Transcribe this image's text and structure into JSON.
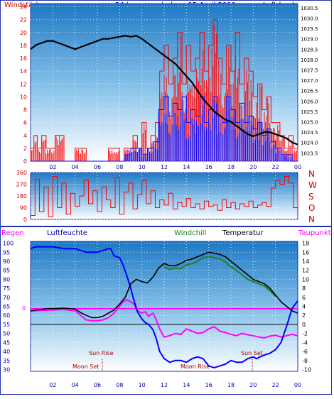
{
  "header": {
    "title": "24 hour graph day : 15 April 2019",
    "left_label": "Windstärke",
    "right_label": "Luftdruck"
  },
  "bottom_header": {
    "regen": "Regen",
    "luftfeuchte": "Luftfeuchte",
    "windchill": "Windchill",
    "temperatur": "Temperatur",
    "taupunkt": "Taupunkt"
  },
  "colors": {
    "background": "#ffffff",
    "frame": "#2233aa",
    "sky_top": "#1d79c4",
    "sky_bottom": "#ffffff",
    "gust": "#ff0000",
    "wind": "#0000ff",
    "pressure": "#000000",
    "direction": "#ff0000",
    "humidity": "#0000ff",
    "temperature": "#000000",
    "windchill": "#208020",
    "dewpoint": "#ff00ff",
    "rain": "#ff00ff",
    "axis_red": "#cc0000",
    "axis_blue": "#0000aa"
  },
  "chart_data": [
    {
      "type": "line",
      "x_unit": "hour",
      "xlim": [
        0,
        24
      ],
      "x_ticks": [
        "02",
        "04",
        "06",
        "08",
        "10",
        "12",
        "14",
        "16",
        "18",
        "20",
        "22",
        "00"
      ],
      "y_left": {
        "label": "Windstärke",
        "ticks": [
          0,
          2,
          4,
          6,
          8,
          10,
          12,
          14,
          16,
          18,
          20,
          22,
          24
        ],
        "ylim": [
          0,
          24.5
        ]
      },
      "y_right": {
        "label": "Luftdruck",
        "ticks": [
          1023.5,
          1024,
          1024.5,
          1025,
          1025.5,
          1026,
          1026.5,
          1027,
          1027.5,
          1028,
          1028.5,
          1029,
          1029.5,
          1030,
          1030.5
        ],
        "ylim": [
          1023.1,
          1030.7
        ]
      },
      "series": [
        {
          "axis": "left",
          "x": [
            0,
            0.3,
            0.6,
            1,
            1.4,
            1.8,
            2.2,
            3,
            4,
            5,
            6,
            7,
            8,
            8.4,
            8.8,
            9.2,
            9.6,
            10,
            10.4,
            10.8,
            11.2,
            11.6,
            12,
            12.4,
            12.8,
            13.2,
            13.6,
            14,
            14.4,
            14.8,
            15.2,
            15.6,
            16,
            16.4,
            16.8,
            17.2,
            17.6,
            18,
            18.4,
            18.8,
            19.2,
            19.6,
            20,
            20.4,
            20.8,
            21.2,
            21.6,
            22,
            22.4,
            22.8,
            23.2,
            23.6,
            24
          ],
          "values": [
            2,
            4,
            2,
            4,
            2,
            2,
            4,
            0,
            2,
            0,
            0,
            2,
            0,
            2,
            2,
            4,
            2,
            6,
            2,
            4,
            6,
            14,
            18,
            12,
            16,
            20,
            12,
            18,
            14,
            16,
            20,
            14,
            18,
            22,
            16,
            12,
            18,
            14,
            20,
            12,
            16,
            14,
            10,
            12,
            8,
            10,
            6,
            6,
            4,
            2,
            4,
            2,
            2
          ]
        },
        {
          "axis": "left",
          "x": [
            0,
            1,
            2,
            3,
            4,
            5,
            6,
            7,
            8,
            8.5,
            9,
            9.5,
            10,
            10.5,
            11,
            11.5,
            12,
            12.4,
            12.8,
            13.2,
            13.6,
            14,
            14.4,
            14.8,
            15.2,
            15.6,
            16,
            16.4,
            16.8,
            17.2,
            17.6,
            18,
            18.4,
            18.8,
            19.2,
            19.6,
            20,
            20.4,
            20.8,
            21.2,
            21.6,
            22,
            22.5,
            23,
            23.5,
            24
          ],
          "values": [
            0,
            0,
            0,
            0,
            0,
            0,
            0,
            0,
            0,
            1,
            2,
            2,
            1,
            2,
            3,
            8,
            10,
            7,
            9,
            8,
            10,
            6,
            8,
            7,
            10,
            6,
            8,
            10,
            7,
            6,
            10,
            8,
            6,
            9,
            6,
            7,
            5,
            6,
            4,
            5,
            3,
            2,
            1,
            1,
            0,
            0
          ]
        },
        {
          "axis": "right",
          "x": [
            0,
            0.5,
            1,
            1.5,
            2,
            2.5,
            3,
            3.5,
            4,
            4.5,
            5,
            5.5,
            6,
            6.5,
            7,
            7.5,
            8,
            8.5,
            9,
            9.5,
            10,
            10.5,
            11,
            11.5,
            12,
            12.5,
            13,
            13.5,
            14,
            14.5,
            15,
            15.5,
            16,
            16.5,
            17,
            17.5,
            18,
            18.5,
            19,
            19.5,
            20,
            20.5,
            21,
            21.5,
            22,
            22.5,
            23,
            23.5,
            24
          ],
          "values": [
            1028.5,
            1028.7,
            1028.8,
            1028.9,
            1028.9,
            1028.8,
            1028.7,
            1028.6,
            1028.5,
            1028.6,
            1028.7,
            1028.8,
            1028.9,
            1029.0,
            1029.0,
            1029.05,
            1029.1,
            1029.15,
            1029.1,
            1029.15,
            1029.0,
            1028.8,
            1028.6,
            1028.4,
            1028.2,
            1028.0,
            1027.8,
            1027.5,
            1027.2,
            1026.9,
            1026.5,
            1026.1,
            1025.8,
            1025.5,
            1025.3,
            1025.1,
            1025.0,
            1024.8,
            1024.6,
            1024.4,
            1024.3,
            1024.4,
            1024.5,
            1024.5,
            1024.4,
            1024.3,
            1024.2,
            1024.0,
            1023.9
          ]
        }
      ]
    },
    {
      "type": "line",
      "x_unit": "hour",
      "xlim": [
        0,
        24
      ],
      "y_left": {
        "ticks": [
          0,
          90,
          180,
          270,
          360
        ],
        "ylim": [
          0,
          360
        ]
      },
      "y_right": {
        "ticks": [
          "N",
          "W",
          "S",
          "O",
          "N"
        ]
      },
      "series": [
        {
          "axis": "left",
          "x": [
            0,
            0.4,
            0.8,
            1.2,
            1.6,
            2.0,
            2.4,
            2.8,
            3.2,
            3.6,
            4.0,
            4.4,
            4.8,
            5.2,
            5.6,
            6.0,
            6.4,
            6.8,
            7.2,
            7.6,
            8.0,
            8.4,
            8.8,
            9.2,
            9.6,
            10.0,
            10.4,
            10.8,
            11.2,
            11.6,
            12.0,
            12.4,
            12.8,
            13.2,
            13.6,
            14.0,
            14.4,
            14.8,
            15.2,
            15.6,
            16.0,
            16.4,
            16.8,
            17.2,
            17.6,
            18.0,
            18.4,
            18.8,
            19.2,
            19.6,
            20.0,
            20.4,
            20.8,
            21.2,
            21.6,
            22.0,
            22.4,
            22.8,
            23.2,
            23.6,
            24.0
          ],
          "values": [
            30,
            310,
            60,
            250,
            20,
            330,
            90,
            280,
            40,
            200,
            100,
            180,
            300,
            120,
            220,
            60,
            250,
            150,
            90,
            320,
            40,
            210,
            280,
            80,
            190,
            300,
            120,
            220,
            90,
            150,
            110,
            200,
            80,
            130,
            100,
            160,
            90,
            120,
            80,
            140,
            100,
            110,
            70,
            150,
            90,
            130,
            80,
            120,
            100,
            140,
            90,
            110,
            130,
            100,
            240,
            300,
            270,
            330,
            280,
            90,
            290
          ]
        }
      ]
    },
    {
      "type": "line",
      "x_unit": "hour",
      "xlim": [
        0,
        24
      ],
      "y_left": {
        "label": "Luftfeuchte",
        "ticks": [
          30,
          35,
          40,
          45,
          50,
          55,
          60,
          65,
          70,
          75,
          80,
          85,
          90,
          95,
          100
        ],
        "ylim": [
          29,
          101
        ]
      },
      "y_right": {
        "label": "Temperatur",
        "ticks": [
          -10,
          -8,
          -6,
          -4,
          -2,
          0,
          2,
          4,
          6,
          8,
          10,
          12,
          14,
          16,
          18
        ],
        "ylim": [
          -10.4,
          18.4
        ]
      },
      "rain_axis": {
        "label": "Regen",
        "ticks": [
          "0"
        ]
      },
      "annotations": [
        "Moon Set",
        "Sun Rise",
        "Moon Rise",
        "Sun Set"
      ],
      "series": [
        {
          "axis": "left",
          "x": [
            0,
            0.5,
            1,
            1.5,
            2,
            3,
            4,
            4.5,
            5,
            6,
            6.5,
            7,
            7.2,
            7.5,
            8,
            8.3,
            8.6,
            9,
            9.3,
            9.6,
            10,
            10.3,
            10.6,
            11,
            11.3,
            11.6,
            12,
            12.5,
            13,
            13.5,
            14,
            14.5,
            15,
            15.5,
            16,
            16.5,
            17,
            17.5,
            18,
            18.5,
            19,
            19.5,
            20,
            20.3,
            20.6,
            21,
            21.5,
            22,
            22.5,
            23,
            23.5,
            24
          ],
          "values": [
            97,
            98,
            98,
            98,
            98,
            97,
            97,
            96,
            95,
            95,
            96,
            97,
            97,
            93,
            92,
            88,
            83,
            75,
            68,
            62,
            58,
            56,
            55,
            52,
            47,
            40,
            36,
            34,
            35,
            35,
            34,
            36,
            37,
            36,
            32,
            31,
            32,
            33,
            35,
            34,
            34,
            36,
            37,
            36,
            37,
            38,
            39,
            41,
            45,
            54,
            64,
            68
          ]
        },
        {
          "axis": "right",
          "x": [
            0,
            0.5,
            1,
            1.5,
            2,
            3,
            4,
            4.5,
            5,
            5.5,
            6,
            6.5,
            7,
            7.5,
            8,
            8.5,
            9,
            9.5,
            10,
            10.5,
            11,
            11.5,
            12,
            12.5,
            13,
            13.5,
            14,
            14.5,
            15,
            15.5,
            16,
            16.5,
            17,
            17.5,
            18,
            18.5,
            19,
            19.5,
            20,
            20.5,
            21,
            21.5,
            22,
            22.5,
            23,
            23.5,
            24
          ],
          "values": [
            3,
            3.2,
            3.3,
            3.5,
            3.5,
            3.6,
            3.4,
            2.6,
            2.0,
            1.5,
            1.5,
            1.8,
            2.5,
            3.2,
            4.5,
            6.0,
            9.0,
            10.0,
            9.5,
            9.2,
            10.5,
            12.5,
            13.5,
            13.0,
            13.0,
            13.5,
            14.2,
            14.5,
            15.0,
            15.5,
            16.0,
            15.8,
            15.5,
            15.0,
            14.0,
            13.0,
            12.0,
            11.0,
            10.0,
            9.5,
            9.0,
            8.0,
            6.5,
            5.0,
            4.0,
            3.0,
            2.5
          ]
        },
        {
          "axis": "right",
          "x": [
            12,
            12.5,
            13,
            13.5,
            14,
            14.5,
            15,
            15.5,
            16,
            16.5,
            17,
            17.5,
            18,
            18.5,
            19,
            19.5,
            20,
            20.5,
            21,
            21.5,
            22
          ],
          "values": [
            12.8,
            12.2,
            12.5,
            12.4,
            13.2,
            13.5,
            14.0,
            14.8,
            15.0,
            14.8,
            14.5,
            13.8,
            12.8,
            12.0,
            11.0,
            10.0,
            9.5,
            9.0,
            8.5,
            7.5,
            6.2
          ]
        },
        {
          "axis": "right",
          "x": [
            0,
            1,
            2,
            3,
            4,
            4.5,
            5,
            5.5,
            6,
            6.5,
            7,
            7.5,
            8,
            8.3,
            8.6,
            9,
            9.3,
            9.6,
            10,
            10.3,
            10.6,
            11,
            11.3,
            11.6,
            12,
            12.5,
            13,
            13.5,
            14,
            14.5,
            15,
            15.5,
            16,
            16.5,
            17,
            17.5,
            18,
            18.5,
            19,
            19.5,
            20,
            20.5,
            21,
            21.5,
            22,
            22.5,
            23,
            23.5,
            24
          ],
          "values": [
            3,
            3.1,
            3.2,
            3.3,
            3.0,
            2.0,
            1.0,
            0.8,
            0.8,
            1.0,
            1.5,
            2.5,
            4.0,
            5.0,
            5.5,
            5.0,
            4.5,
            3.0,
            2.5,
            2.8,
            1.8,
            2.5,
            1.0,
            -1.0,
            -2.8,
            -2.5,
            -2.0,
            -2.2,
            -1.0,
            -1.5,
            -2.0,
            -1.8,
            -1.0,
            -0.5,
            -1.5,
            -1.8,
            -2.2,
            -2.5,
            -2.0,
            -2.3,
            -2.5,
            -2.8,
            -3.0,
            -2.6,
            -2.4,
            -2.8,
            -2.5,
            -2.2,
            -2.5
          ]
        },
        {
          "axis": "right",
          "x": [
            0,
            24
          ],
          "values": [
            3.5,
            3.5
          ]
        }
      ]
    }
  ]
}
